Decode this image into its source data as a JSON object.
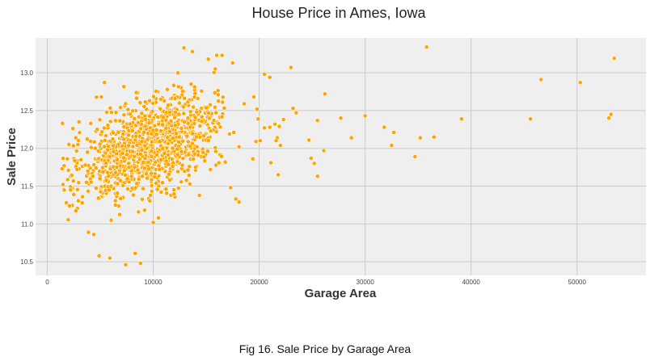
{
  "chart_data": {
    "type": "scatter",
    "title": "House Price in Ames, Iowa",
    "xlabel": "Garage Area",
    "ylabel": "Sale Price",
    "xlim": [
      -1100,
      56500
    ],
    "ylim": [
      10.32,
      13.46
    ],
    "xticks": [
      0,
      10000,
      20000,
      30000,
      40000,
      50000
    ],
    "xtick_labels": [
      "0",
      "10000",
      "20000",
      "30000",
      "40000",
      "50000"
    ],
    "yticks": [
      10.5,
      11.0,
      11.5,
      12.0,
      12.5,
      13.0
    ],
    "ytick_labels": [
      "10.5",
      "11.0",
      "11.5",
      "12.0",
      "12.5",
      "13.0"
    ],
    "grid": true,
    "marker_color": "#FFA500",
    "points": [
      [
        35800,
        13.34
      ],
      [
        53500,
        13.19
      ],
      [
        46600,
        12.91
      ],
      [
        50300,
        12.87
      ],
      [
        53200,
        12.45
      ],
      [
        53000,
        12.4
      ],
      [
        39100,
        12.39
      ],
      [
        45600,
        12.39
      ],
      [
        36500,
        12.15
      ],
      [
        35200,
        12.14
      ],
      [
        34700,
        11.89
      ],
      [
        32500,
        12.04
      ],
      [
        32700,
        12.21
      ],
      [
        31800,
        12.28
      ],
      [
        30000,
        12.43
      ],
      [
        28700,
        12.14
      ],
      [
        27700,
        12.4
      ],
      [
        26200,
        12.72
      ],
      [
        26100,
        11.97
      ],
      [
        25500,
        12.37
      ],
      [
        25500,
        11.63
      ],
      [
        25200,
        11.8
      ],
      [
        24900,
        11.87
      ],
      [
        24700,
        12.11
      ],
      [
        23000,
        13.07
      ],
      [
        20500,
        12.98
      ],
      [
        21000,
        12.94
      ],
      [
        23200,
        12.53
      ],
      [
        23500,
        12.47
      ],
      [
        22300,
        12.38
      ],
      [
        21500,
        12.32
      ],
      [
        21900,
        12.29
      ],
      [
        20500,
        12.27
      ],
      [
        21000,
        12.28
      ],
      [
        21700,
        12.14
      ],
      [
        21600,
        12.1
      ],
      [
        22000,
        12.04
      ],
      [
        21100,
        11.81
      ],
      [
        21800,
        11.65
      ],
      [
        19500,
        12.68
      ],
      [
        19800,
        12.52
      ],
      [
        19900,
        12.39
      ],
      [
        19700,
        12.09
      ],
      [
        20100,
        12.1
      ],
      [
        19400,
        11.86
      ],
      [
        18600,
        12.59
      ],
      [
        17500,
        13.13
      ],
      [
        16000,
        13.23
      ],
      [
        16500,
        13.23
      ],
      [
        15200,
        13.18
      ],
      [
        12900,
        13.33
      ],
      [
        13700,
        13.28
      ],
      [
        7400,
        10.46
      ],
      [
        8300,
        10.61
      ],
      [
        8800,
        10.48
      ],
      [
        4900,
        10.58
      ],
      [
        5900,
        10.55
      ],
      [
        3900,
        10.89
      ],
      [
        4400,
        10.86
      ],
      [
        10000,
        11.02
      ],
      [
        10500,
        11.08
      ],
      [
        5400,
        12.87
      ],
      [
        5100,
        12.68
      ],
      [
        3000,
        12.35
      ],
      [
        2700,
        12.14
      ],
      [
        1400,
        11.73
      ],
      [
        1600,
        11.45
      ],
      [
        1800,
        11.28
      ],
      [
        2100,
        11.24
      ],
      [
        2500,
        11.39
      ],
      [
        3300,
        11.28
      ],
      [
        3700,
        11.55
      ],
      [
        4300,
        11.63
      ],
      [
        4600,
        11.74
      ],
      [
        3800,
        11.95
      ],
      [
        2900,
        12.05
      ],
      [
        17200,
        12.19
      ],
      [
        16800,
        11.82
      ],
      [
        17800,
        11.33
      ],
      [
        18100,
        11.29
      ],
      [
        17300,
        11.48
      ],
      [
        15400,
        11.72
      ],
      [
        16200,
        11.81
      ],
      [
        18100,
        12.02
      ],
      [
        17600,
        12.21
      ]
    ]
  },
  "caption": "Fig 16. Sale Price by Garage Area"
}
